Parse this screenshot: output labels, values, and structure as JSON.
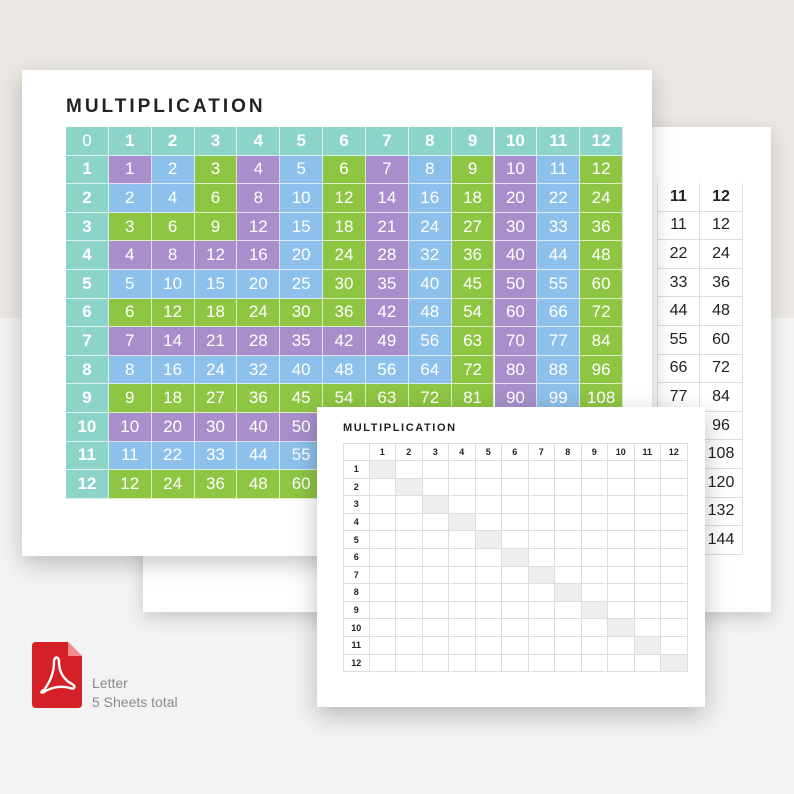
{
  "main_sheet": {
    "title": "MULTIPLICATION",
    "corner": "0",
    "column_headers": [
      1,
      2,
      3,
      4,
      5,
      6,
      7,
      8,
      9,
      10,
      11,
      12
    ],
    "row_headers": [
      1,
      2,
      3,
      4,
      5,
      6,
      7,
      8,
      9,
      10,
      11,
      12
    ],
    "rows": [
      [
        1,
        2,
        3,
        4,
        5,
        6,
        7,
        8,
        9,
        10,
        11,
        12
      ],
      [
        2,
        4,
        6,
        8,
        10,
        12,
        14,
        16,
        18,
        20,
        22,
        24
      ],
      [
        3,
        6,
        9,
        12,
        15,
        18,
        21,
        24,
        27,
        30,
        33,
        36
      ],
      [
        4,
        8,
        12,
        16,
        20,
        24,
        28,
        32,
        36,
        40,
        44,
        48
      ],
      [
        5,
        10,
        15,
        20,
        25,
        30,
        35,
        40,
        45,
        50,
        55,
        60
      ],
      [
        6,
        12,
        18,
        24,
        30,
        36,
        42,
        48,
        54,
        60,
        66,
        72
      ],
      [
        7,
        14,
        21,
        28,
        35,
        42,
        49,
        56,
        63,
        70,
        77,
        84
      ],
      [
        8,
        16,
        24,
        32,
        40,
        48,
        56,
        64,
        72,
        80,
        88,
        96
      ],
      [
        9,
        18,
        27,
        36,
        45,
        54,
        63,
        72,
        81,
        90,
        99,
        108
      ],
      [
        10,
        20,
        30,
        40,
        50,
        null,
        null,
        null,
        null,
        null,
        null,
        null
      ],
      [
        11,
        22,
        33,
        44,
        55,
        null,
        null,
        null,
        null,
        null,
        null,
        null
      ],
      [
        12,
        24,
        36,
        48,
        60,
        null,
        null,
        null,
        null,
        null,
        null,
        null
      ]
    ]
  },
  "back_sheet": {
    "column_headers": [
      11,
      12
    ],
    "rows": [
      [
        11,
        12
      ],
      [
        22,
        24
      ],
      [
        33,
        36
      ],
      [
        44,
        48
      ],
      [
        55,
        60
      ],
      [
        66,
        72
      ],
      [
        77,
        84
      ],
      [
        null,
        96
      ],
      [
        null,
        108
      ],
      [
        null,
        120
      ],
      [
        null,
        132
      ],
      [
        null,
        144
      ]
    ]
  },
  "front_sheet": {
    "title": "MULTIPLICATION",
    "column_headers": [
      1,
      2,
      3,
      4,
      5,
      6,
      7,
      8,
      9,
      10,
      11,
      12
    ],
    "row_headers": [
      1,
      2,
      3,
      4,
      5,
      6,
      7,
      8,
      9,
      10,
      11,
      12
    ]
  },
  "file_info": {
    "paper_size": "Letter",
    "sheet_count": "5 Sheets total"
  }
}
